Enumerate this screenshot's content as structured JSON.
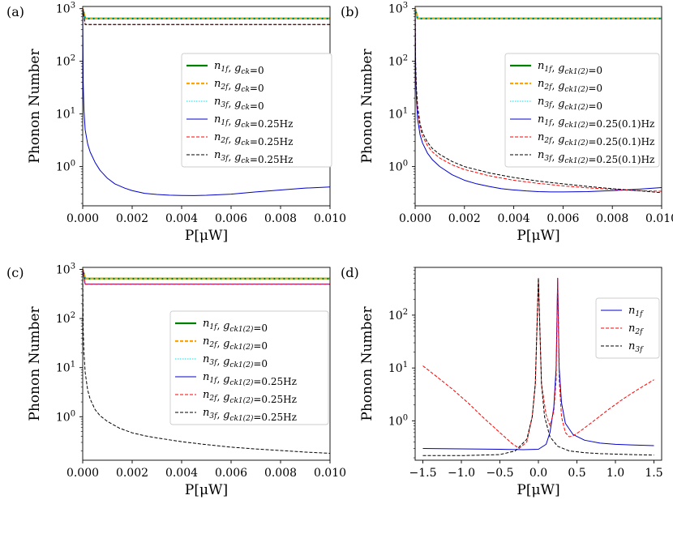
{
  "chart_data": [
    {
      "type": "line",
      "panel_label": "(a)",
      "xlabel": "P[μW]",
      "ylabel": "Phonon Number",
      "xscale": "linear",
      "yscale": "log",
      "xlim": [
        0,
        0.01
      ],
      "ylim": [
        0.18,
        1100
      ],
      "xticks": [
        0,
        0.002,
        0.004,
        0.006,
        0.008,
        0.01
      ],
      "xtick_labels": [
        "0.000",
        "0.002",
        "0.004",
        "0.006",
        "0.008",
        "0.010"
      ],
      "ytick_exponents": [
        0,
        1,
        2,
        3
      ],
      "legend_position": "center-right",
      "series": [
        {
          "name": "n_1f, g_ck = 0",
          "legend": {
            "parts": [
              [
                "n",
                "1f"
              ],
              ", ",
              [
                "g",
                "ck"
              ]
            ],
            "value": "=0"
          },
          "color": "#008000",
          "style": "solid",
          "width": 2.2,
          "x": [
            0,
            0.0001,
            0.01
          ],
          "y": [
            1000,
            650,
            650
          ]
        },
        {
          "name": "n_2f, g_ck = 0",
          "legend": {
            "parts": [
              [
                "n",
                "2f"
              ],
              ", ",
              [
                "g",
                "ck"
              ]
            ],
            "value": "=0"
          },
          "color": "#ffa500",
          "style": "dashed",
          "width": 2.2,
          "x": [
            0,
            0.0001,
            0.01
          ],
          "y": [
            1000,
            650,
            650
          ]
        },
        {
          "name": "n_3f, g_ck = 0",
          "legend": {
            "parts": [
              [
                "n",
                "3f"
              ],
              ", ",
              [
                "g",
                "ck"
              ]
            ],
            "value": "=0"
          },
          "color": "#00e5ee",
          "style": "dotted",
          "width": 1,
          "x": [
            0,
            0.0001,
            0.01
          ],
          "y": [
            1000,
            650,
            650
          ]
        },
        {
          "name": "n_1f, g_ck = 0.25Hz",
          "legend": {
            "parts": [
              [
                "n",
                "1f"
              ],
              ", ",
              [
                "g",
                "ck"
              ]
            ],
            "value": "=0.25Hz"
          },
          "color": "#0000cc",
          "style": "solid",
          "width": 1,
          "x": [
            0,
            2e-05,
            5e-05,
            0.0001,
            0.0002,
            0.0003,
            0.0005,
            0.0007,
            0.001,
            0.0013,
            0.0017,
            0.002,
            0.0025,
            0.003,
            0.0035,
            0.004,
            0.0045,
            0.005,
            0.006,
            0.007,
            0.008,
            0.009,
            0.01
          ],
          "y": [
            1000,
            40,
            12,
            5,
            2.7,
            1.9,
            1.2,
            0.85,
            0.6,
            0.47,
            0.39,
            0.35,
            0.31,
            0.295,
            0.287,
            0.283,
            0.282,
            0.285,
            0.3,
            0.33,
            0.36,
            0.39,
            0.41
          ]
        },
        {
          "name": "n_2f, g_ck = 0.25Hz",
          "legend": {
            "parts": [
              [
                "n",
                "2f"
              ],
              ", ",
              [
                "g",
                "ck"
              ]
            ],
            "value": "=0.25Hz"
          },
          "color": "#ff0000",
          "style": "dashed",
          "width": 1,
          "x": [
            0,
            0.0001,
            0.01
          ],
          "y": [
            1000,
            500,
            500
          ]
        },
        {
          "name": "n_3f, g_ck = 0.25Hz",
          "legend": {
            "parts": [
              [
                "n",
                "3f"
              ],
              ", ",
              [
                "g",
                "ck"
              ]
            ],
            "value": "=0.25Hz"
          },
          "color": "#000000",
          "style": "dashed",
          "width": 1,
          "x": [
            0,
            0.0001,
            0.01
          ],
          "y": [
            1000,
            500,
            500
          ]
        }
      ]
    },
    {
      "type": "line",
      "panel_label": "(b)",
      "xlabel": "P[μW]",
      "ylabel": "Phonon Number",
      "xscale": "linear",
      "yscale": "log",
      "xlim": [
        0,
        0.01
      ],
      "ylim": [
        0.18,
        1100
      ],
      "xticks": [
        0,
        0.002,
        0.004,
        0.006,
        0.008,
        0.01
      ],
      "xtick_labels": [
        "0.000",
        "0.002",
        "0.004",
        "0.006",
        "0.008",
        "0.010"
      ],
      "ytick_exponents": [
        0,
        1,
        2,
        3
      ],
      "legend_position": "center-right",
      "series": [
        {
          "name": "n_1f, g_ck1(2) = 0",
          "legend": {
            "parts": [
              [
                "n",
                "1f"
              ],
              ", ",
              [
                "g",
                "ck1(2)"
              ]
            ],
            "value": "=0"
          },
          "color": "#008000",
          "style": "solid",
          "width": 2.2,
          "x": [
            0,
            0.0001,
            0.01
          ],
          "y": [
            1000,
            650,
            650
          ]
        },
        {
          "name": "n_2f, g_ck1(2) = 0",
          "legend": {
            "parts": [
              [
                "n",
                "2f"
              ],
              ", ",
              [
                "g",
                "ck1(2)"
              ]
            ],
            "value": "=0"
          },
          "color": "#ffa500",
          "style": "dashed",
          "width": 2.2,
          "x": [
            0,
            0.0001,
            0.01
          ],
          "y": [
            1000,
            650,
            650
          ]
        },
        {
          "name": "n_3f, g_ck1(2) = 0",
          "legend": {
            "parts": [
              [
                "n",
                "3f"
              ],
              ", ",
              [
                "g",
                "ck1(2)"
              ]
            ],
            "value": "=0"
          },
          "color": "#00e5ee",
          "style": "dotted",
          "width": 1,
          "x": [
            0,
            0.0001,
            0.01
          ],
          "y": [
            1000,
            650,
            650
          ]
        },
        {
          "name": "n_1f, g_ck1(2) = 0.25(0.1)Hz",
          "legend": {
            "parts": [
              [
                "n",
                "1f"
              ],
              ", ",
              [
                "g",
                "ck1(2)"
              ]
            ],
            "value": "=0.25(0.1)Hz"
          },
          "color": "#0000cc",
          "style": "solid",
          "width": 1,
          "x": [
            0,
            2e-05,
            5e-05,
            0.0001,
            0.0002,
            0.0003,
            0.0005,
            0.0007,
            0.001,
            0.0015,
            0.002,
            0.0025,
            0.003,
            0.0035,
            0.004,
            0.0045,
            0.005,
            0.0055,
            0.006,
            0.007,
            0.008,
            0.009,
            0.01
          ],
          "y": [
            1000,
            60,
            20,
            8,
            4,
            2.8,
            1.8,
            1.35,
            1,
            0.7,
            0.55,
            0.47,
            0.42,
            0.38,
            0.36,
            0.345,
            0.335,
            0.33,
            0.33,
            0.335,
            0.35,
            0.37,
            0.4
          ]
        },
        {
          "name": "n_2f, g_ck1(2) = 0.25(0.1)Hz",
          "legend": {
            "parts": [
              [
                "n",
                "2f"
              ],
              ", ",
              [
                "g",
                "ck1(2)"
              ]
            ],
            "value": "=0.25(0.1)Hz"
          },
          "color": "#ff0000",
          "style": "dashed",
          "width": 1,
          "x": [
            0,
            2e-05,
            5e-05,
            0.0001,
            0.0002,
            0.0003,
            0.0005,
            0.0007,
            0.001,
            0.0015,
            0.002,
            0.003,
            0.004,
            0.005,
            0.006,
            0.007,
            0.008,
            0.009,
            0.01
          ],
          "y": [
            1000,
            80,
            28,
            12,
            5.5,
            3.8,
            2.5,
            1.9,
            1.45,
            1.08,
            0.88,
            0.67,
            0.55,
            0.48,
            0.43,
            0.395,
            0.37,
            0.35,
            0.34
          ]
        },
        {
          "name": "n_3f, g_ck1(2) = 0.25(0.1)Hz",
          "legend": {
            "parts": [
              [
                "n",
                "3f"
              ],
              ", ",
              [
                "g",
                "ck1(2)"
              ]
            ],
            "value": "=0.25(0.1)Hz"
          },
          "color": "#000000",
          "style": "dashed",
          "width": 1,
          "x": [
            0,
            2e-05,
            5e-05,
            0.0001,
            0.0002,
            0.0003,
            0.0005,
            0.0007,
            0.001,
            0.0015,
            0.002,
            0.003,
            0.004,
            0.005,
            0.006,
            0.007,
            0.008,
            0.009,
            0.01
          ],
          "y": [
            1000,
            90,
            32,
            14,
            6.5,
            4.4,
            2.9,
            2.2,
            1.7,
            1.25,
            1,
            0.76,
            0.62,
            0.53,
            0.47,
            0.42,
            0.38,
            0.35,
            0.32
          ]
        }
      ]
    },
    {
      "type": "line",
      "panel_label": "(c)",
      "xlabel": "P[μW]",
      "ylabel": "Phonon Number",
      "xscale": "linear",
      "yscale": "log",
      "xlim": [
        0,
        0.01
      ],
      "ylim": [
        0.13,
        1100
      ],
      "xticks": [
        0,
        0.002,
        0.004,
        0.006,
        0.008,
        0.01
      ],
      "xtick_labels": [
        "0.000",
        "0.002",
        "0.004",
        "0.006",
        "0.008",
        "0.010"
      ],
      "ytick_exponents": [
        0,
        1,
        2,
        3
      ],
      "legend_position": "center-right",
      "series": [
        {
          "name": "n_1f, g_ck1(2) = 0",
          "legend": {
            "parts": [
              [
                "n",
                "1f"
              ],
              ", ",
              [
                "g",
                "ck1(2)"
              ]
            ],
            "value": "=0"
          },
          "color": "#008000",
          "style": "solid",
          "width": 2.2,
          "x": [
            0,
            0.0001,
            0.01
          ],
          "y": [
            1000,
            650,
            650
          ]
        },
        {
          "name": "n_2f, g_ck1(2) = 0",
          "legend": {
            "parts": [
              [
                "n",
                "2f"
              ],
              ", ",
              [
                "g",
                "ck1(2)"
              ]
            ],
            "value": "=0"
          },
          "color": "#ffa500",
          "style": "dashed",
          "width": 2.2,
          "x": [
            0,
            0.0001,
            0.01
          ],
          "y": [
            1000,
            650,
            650
          ]
        },
        {
          "name": "n_3f, g_ck1(2) = 0",
          "legend": {
            "parts": [
              [
                "n",
                "3f"
              ],
              ", ",
              [
                "g",
                "ck1(2)"
              ]
            ],
            "value": "=0"
          },
          "color": "#00e5ee",
          "style": "dotted",
          "width": 1,
          "x": [
            0,
            0.0001,
            0.01
          ],
          "y": [
            1000,
            650,
            650
          ]
        },
        {
          "name": "n_1f, g_ck1(2) = 0.25Hz",
          "legend": {
            "parts": [
              [
                "n",
                "1f"
              ],
              ", ",
              [
                "g",
                "ck1(2)"
              ]
            ],
            "value": "=0.25Hz"
          },
          "color": "#0000cc",
          "style": "solid",
          "width": 1,
          "x": [
            0,
            0.0001,
            0.01
          ],
          "y": [
            1000,
            500,
            500
          ]
        },
        {
          "name": "n_2f, g_ck1(2) = 0.25Hz",
          "legend": {
            "parts": [
              [
                "n",
                "2f"
              ],
              ", ",
              [
                "g",
                "ck1(2)"
              ]
            ],
            "value": "=0.25Hz"
          },
          "color": "#ff0000",
          "style": "dashed",
          "width": 1,
          "x": [
            0,
            0.0001,
            0.01
          ],
          "y": [
            1000,
            500,
            500
          ]
        },
        {
          "name": "n_3f, g_ck1(2) = 0.25Hz",
          "legend": {
            "parts": [
              [
                "n",
                "3f"
              ],
              ", ",
              [
                "g",
                "ck1(2)"
              ]
            ],
            "value": "=0.25Hz"
          },
          "color": "#000000",
          "style": "dashed",
          "width": 1,
          "x": [
            0,
            2e-05,
            5e-05,
            0.0001,
            0.0002,
            0.0003,
            0.0005,
            0.0007,
            0.001,
            0.0015,
            0.002,
            0.0025,
            0.003,
            0.004,
            0.005,
            0.006,
            0.007,
            0.008,
            0.009,
            0.01
          ],
          "y": [
            1000,
            60,
            20,
            8,
            3.5,
            2.3,
            1.4,
            1.05,
            0.8,
            0.58,
            0.47,
            0.41,
            0.37,
            0.31,
            0.27,
            0.24,
            0.22,
            0.205,
            0.19,
            0.18
          ]
        }
      ]
    },
    {
      "type": "line",
      "panel_label": "(d)",
      "xlabel": "P[μW]",
      "ylabel": "Phonon Number",
      "xscale": "linear",
      "yscale": "log",
      "xlim": [
        -1.6,
        1.6
      ],
      "ylim": [
        0.18,
        800
      ],
      "xticks": [
        -1.5,
        -1.0,
        -0.5,
        0.0,
        0.5,
        1.0,
        1.5
      ],
      "xtick_labels": [
        "−1.5",
        "−1.0",
        "−0.5",
        "0.0",
        "0.5",
        "1.0",
        "1.5"
      ],
      "ytick_exponents": [
        0,
        1,
        2
      ],
      "legend_position": "top-right",
      "series": [
        {
          "name": "n_1f",
          "legend": {
            "parts": [
              [
                "n",
                "1f"
              ]
            ],
            "value": ""
          },
          "color": "#0000cc",
          "style": "solid",
          "width": 1,
          "x": [
            -1.5,
            -1.0,
            -0.5,
            -0.2,
            0.0,
            0.1,
            0.15,
            0.2,
            0.23,
            0.25,
            0.27,
            0.3,
            0.35,
            0.45,
            0.6,
            0.8,
            1.0,
            1.2,
            1.5
          ],
          "y": [
            0.3,
            0.295,
            0.29,
            0.285,
            0.29,
            0.36,
            0.6,
            1.8,
            10,
            500,
            10,
            2.2,
            0.9,
            0.55,
            0.43,
            0.38,
            0.36,
            0.35,
            0.34
          ]
        },
        {
          "name": "n_2f",
          "legend": {
            "parts": [
              [
                "n",
                "2f"
              ]
            ],
            "value": ""
          },
          "color": "#ff0000",
          "style": "dashed",
          "width": 1,
          "x": [
            -1.5,
            -1.3,
            -1.1,
            -0.9,
            -0.7,
            -0.5,
            -0.35,
            -0.25,
            -0.15,
            -0.08,
            -0.04,
            0.0,
            0.04,
            0.1,
            0.15,
            0.2,
            0.23,
            0.25,
            0.27,
            0.3,
            0.35,
            0.4,
            0.45,
            0.55,
            0.7,
            0.9,
            1.1,
            1.3,
            1.5
          ],
          "y": [
            11,
            6.5,
            3.8,
            2.1,
            1.1,
            0.6,
            0.38,
            0.3,
            0.4,
            1.2,
            5,
            500,
            5,
            1.3,
            0.8,
            1.5,
            6,
            500,
            6,
            1.2,
            0.6,
            0.5,
            0.52,
            0.65,
            0.95,
            1.6,
            2.6,
            4,
            6
          ]
        },
        {
          "name": "n_3f",
          "legend": {
            "parts": [
              [
                "n",
                "3f"
              ]
            ],
            "value": ""
          },
          "color": "#000000",
          "style": "dashed",
          "width": 1,
          "x": [
            -1.5,
            -1.0,
            -0.5,
            -0.3,
            -0.15,
            -0.08,
            -0.04,
            0.0,
            0.04,
            0.08,
            0.15,
            0.25,
            0.4,
            0.6,
            0.8,
            1.0,
            1.2,
            1.5
          ],
          "y": [
            0.22,
            0.22,
            0.23,
            0.27,
            0.45,
            1.2,
            5,
            500,
            5,
            1.2,
            0.5,
            0.33,
            0.27,
            0.25,
            0.24,
            0.235,
            0.23,
            0.225
          ]
        }
      ]
    }
  ]
}
